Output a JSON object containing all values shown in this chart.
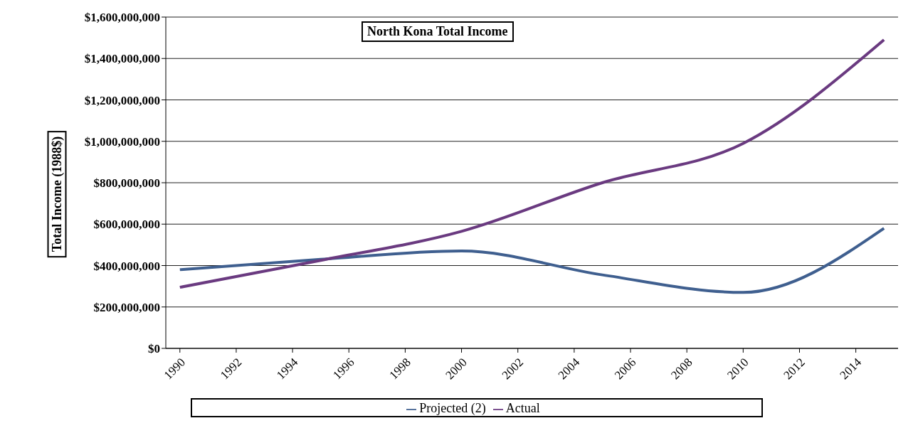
{
  "chart_data": {
    "type": "line",
    "title": "North Kona Total Income",
    "ylabel": "Total Income (1988$)",
    "x": [
      1990,
      1995,
      2000,
      2005,
      2010,
      2015
    ],
    "xlim": [
      1989.5,
      2015.5
    ],
    "xticks": [
      1990,
      1992,
      1994,
      1996,
      1998,
      2000,
      2002,
      2004,
      2006,
      2008,
      2010,
      2012,
      2014
    ],
    "ylim": [
      0,
      1600000000
    ],
    "yticks": [
      {
        "value": 0,
        "label": "$0"
      },
      {
        "value": 200000000,
        "label": "$200,000,000"
      },
      {
        "value": 400000000,
        "label": "$400,000,000"
      },
      {
        "value": 600000000,
        "label": "$600,000,000"
      },
      {
        "value": 800000000,
        "label": "$800,000,000"
      },
      {
        "value": 1000000000,
        "label": "$1,000,000,000"
      },
      {
        "value": 1200000000,
        "label": "$1,200,000,000"
      },
      {
        "value": 1400000000,
        "label": "$1,400,000,000"
      },
      {
        "value": 1600000000,
        "label": "$1,600,000,000"
      }
    ],
    "series": [
      {
        "name": "Projected (2)",
        "color": "#3f5f8f",
        "values": [
          380000000,
          430000000,
          470000000,
          355000000,
          270000000,
          580000000
        ]
      },
      {
        "name": "Actual",
        "color": "#6a3a80",
        "values": [
          295000000,
          425000000,
          565000000,
          800000000,
          990000000,
          1490000000
        ]
      }
    ],
    "grid": "y",
    "legend": "bottom",
    "marker": "none",
    "line_style": "solid"
  }
}
